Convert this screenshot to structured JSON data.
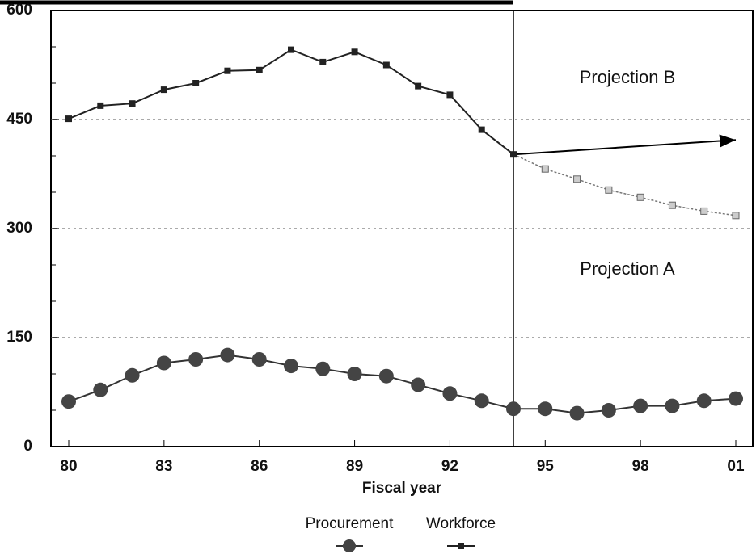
{
  "chart_data": {
    "type": "line",
    "x_label": "Fiscal year",
    "x": [
      1980,
      1981,
      1982,
      1983,
      1984,
      1985,
      1986,
      1987,
      1988,
      1989,
      1990,
      1991,
      1992,
      1993,
      1994,
      1995,
      1996,
      1997,
      1998,
      1999,
      2000,
      2001
    ],
    "series": [
      {
        "name": "Procurement",
        "color": "#333333",
        "marker": "circle",
        "values": [
          62,
          78,
          98,
          115,
          120,
          126,
          120,
          111,
          107,
          100,
          97,
          85,
          73,
          63,
          52,
          52,
          46,
          50,
          56,
          56,
          63,
          66
        ]
      },
      {
        "name": "Workforce",
        "color": "#222222",
        "marker": "square",
        "values": [
          451,
          469,
          472,
          491,
          500,
          517,
          518,
          546,
          529,
          543,
          525,
          496,
          484,
          436,
          402,
          null,
          null,
          null,
          null,
          null,
          null,
          null
        ]
      }
    ],
    "projections": [
      {
        "label": "Projection A",
        "x": [
          1994,
          1995,
          1996,
          1997,
          1998,
          1999,
          2000,
          2001
        ],
        "values": [
          402,
          382,
          368,
          353,
          343,
          332,
          324,
          318
        ]
      },
      {
        "label": "Projection B",
        "x": [
          1994,
          2001
        ],
        "values": [
          402,
          422
        ]
      }
    ],
    "divider_x": 1994,
    "xlim": [
      1980,
      2001
    ],
    "xticks": [
      {
        "value": 1980,
        "label": "80"
      },
      {
        "value": 1983,
        "label": "83"
      },
      {
        "value": 1986,
        "label": "86"
      },
      {
        "value": 1989,
        "label": "89"
      },
      {
        "value": 1992,
        "label": "92"
      },
      {
        "value": 1995,
        "label": "95"
      },
      {
        "value": 1998,
        "label": "98"
      },
      {
        "value": 2001,
        "label": "01"
      }
    ],
    "ylim": [
      0,
      600
    ],
    "yticks": [
      0,
      150,
      300,
      450,
      600
    ],
    "minor_yticks": [
      50,
      100,
      200,
      250,
      350,
      400,
      500,
      550
    ],
    "grid": true
  }
}
